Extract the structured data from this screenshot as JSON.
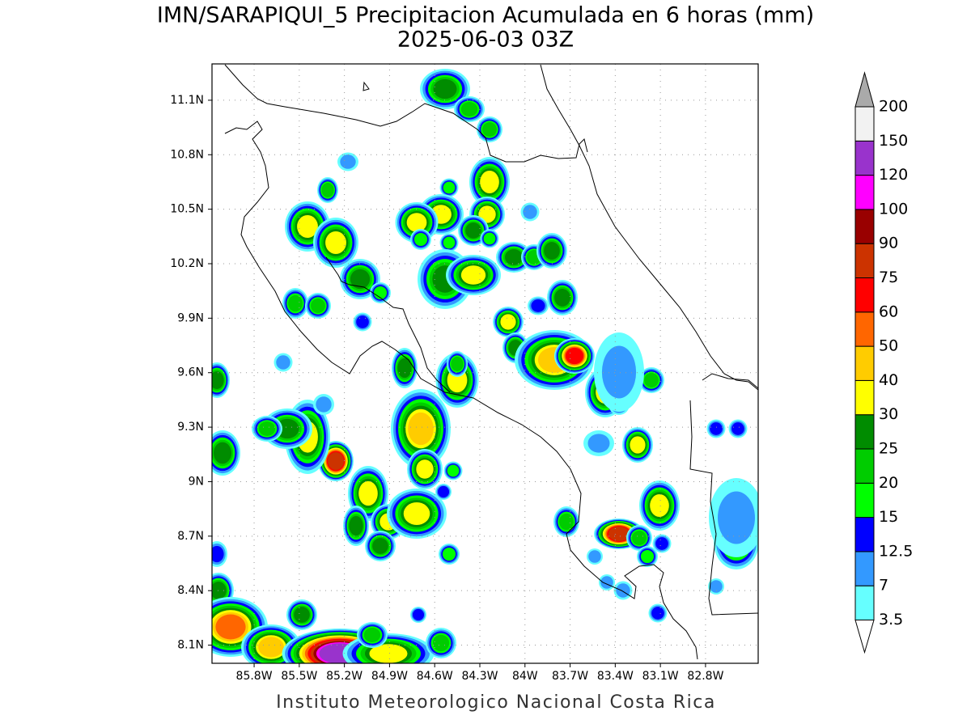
{
  "title": "IMN/SARAPIQUI_5 Precipitacion Acumulada en 6 horas (mm)",
  "subtitle": "2025-06-03 03Z",
  "footer": "Instituto Meteorologico Nacional Costa Rica",
  "map": {
    "xlim": [
      -86.08,
      -82.45
    ],
    "ylim": [
      8.0,
      11.3
    ],
    "grid": true,
    "lat_ticks": [
      {
        "value": 11.1,
        "label": "11.1N"
      },
      {
        "value": 10.8,
        "label": "10.8N"
      },
      {
        "value": 10.5,
        "label": "10.5N"
      },
      {
        "value": 10.2,
        "label": "10.2N"
      },
      {
        "value": 9.9,
        "label": "9.9N"
      },
      {
        "value": 9.6,
        "label": "9.6N"
      },
      {
        "value": 9.3,
        "label": "9.3N"
      },
      {
        "value": 9,
        "label": "9N"
      },
      {
        "value": 8.7,
        "label": "8.7N"
      },
      {
        "value": 8.4,
        "label": "8.4N"
      },
      {
        "value": 8.1,
        "label": "8.1N"
      }
    ],
    "lon_ticks": [
      {
        "value": -85.8,
        "label": "85.8W"
      },
      {
        "value": -85.5,
        "label": "85.5W"
      },
      {
        "value": -85.2,
        "label": "85.2W"
      },
      {
        "value": -84.9,
        "label": "84.9W"
      },
      {
        "value": -84.6,
        "label": "84.6W"
      },
      {
        "value": -84.3,
        "label": "84.3W"
      },
      {
        "value": -84,
        "label": "84W"
      },
      {
        "value": -83.7,
        "label": "83.7W"
      },
      {
        "value": -83.4,
        "label": "83.4W"
      },
      {
        "value": -83.1,
        "label": "83.1W"
      },
      {
        "value": -82.8,
        "label": "82.8W"
      }
    ]
  },
  "colorbar": {
    "levels": [
      3.5,
      7,
      12.5,
      15,
      20,
      25,
      30,
      40,
      50,
      60,
      75,
      90,
      100,
      120,
      150,
      200
    ],
    "colors": [
      "#66ffff",
      "#3399ff",
      "#0000ff",
      "#00ff00",
      "#00cc00",
      "#008c00",
      "#ffff00",
      "#ffcc00",
      "#ff6600",
      "#ff0000",
      "#cc3300",
      "#990000",
      "#ff00ff",
      "#9933cc",
      "#f2f2f2"
    ],
    "under_color": "#ffffff",
    "over_color": "#aaaaaa"
  }
}
